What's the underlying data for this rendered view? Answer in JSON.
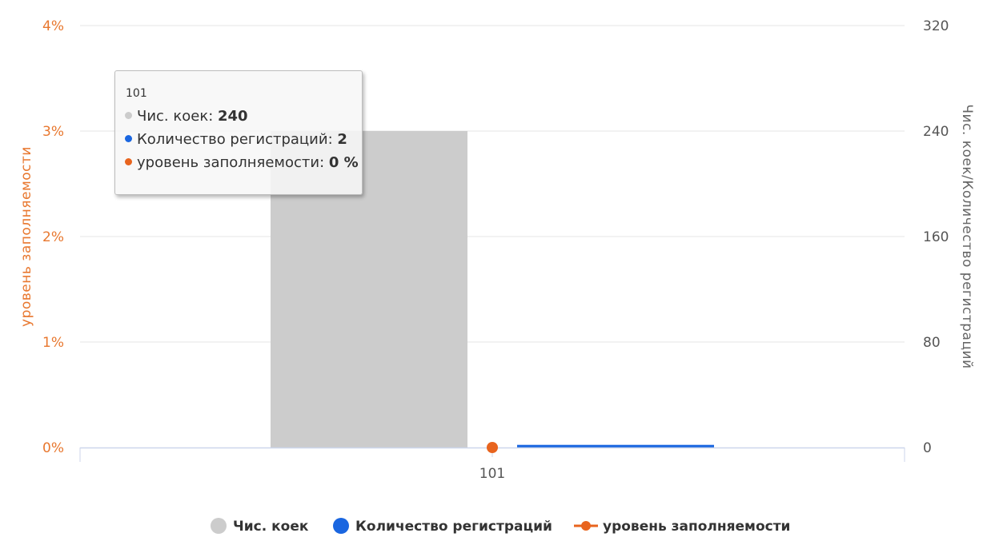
{
  "chart_data": {
    "type": "bar",
    "categories": [
      "101"
    ],
    "series": [
      {
        "name": "Чис. коек",
        "axis": "right",
        "kind": "bar",
        "values": [
          240
        ],
        "color": "#cccccc"
      },
      {
        "name": "Количество регистраций",
        "axis": "right",
        "kind": "bar",
        "values": [
          2
        ],
        "color": "#1a66e0"
      },
      {
        "name": "уровень заполняемости",
        "axis": "left",
        "kind": "line",
        "values": [
          0
        ],
        "color": "#e8641e"
      }
    ],
    "y_left": {
      "label": "уровень заполняемости",
      "ticks": [
        "0%",
        "1%",
        "2%",
        "3%",
        "4%"
      ],
      "range": [
        0,
        4
      ],
      "color": "#e8772e"
    },
    "y_right": {
      "label": "Чис. коек/Количество регистраций",
      "ticks": [
        "0",
        "80",
        "160",
        "240",
        "320"
      ],
      "range": [
        0,
        320
      ]
    },
    "grid": true,
    "legend_position": "bottom",
    "tooltip": {
      "header": "101",
      "rows": [
        {
          "label": "Чис. коек: ",
          "value": "240",
          "color": "#cccccc"
        },
        {
          "label": "Количество регистраций: ",
          "value": "2",
          "color": "#1a66e0"
        },
        {
          "label": "уровень заполняемости: ",
          "value": "0 %",
          "color": "#e8641e"
        }
      ]
    }
  }
}
